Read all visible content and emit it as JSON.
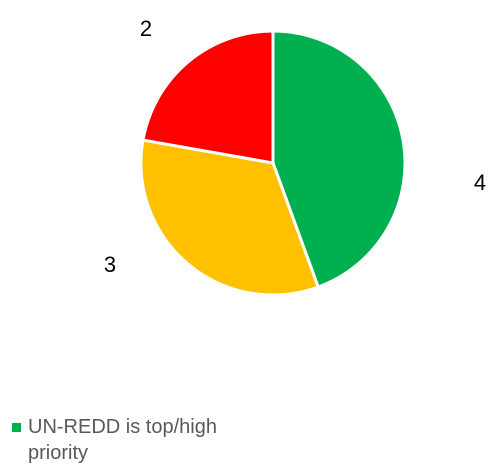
{
  "chart_data": {
    "type": "pie",
    "title": "",
    "categories": [
      "UN-REDD is top/high priority",
      "",
      ""
    ],
    "values": [
      4,
      3,
      2
    ],
    "colors": [
      "#00b050",
      "#ffc000",
      "#ff0000"
    ],
    "data_labels": [
      "4",
      "3",
      "2"
    ],
    "start_angle_deg": 0,
    "direction": "clockwise",
    "legend": {
      "placement": "bottom-left",
      "entries": [
        {
          "label": "UN-REDD is top/high priority",
          "color": "#00b050"
        }
      ]
    }
  }
}
